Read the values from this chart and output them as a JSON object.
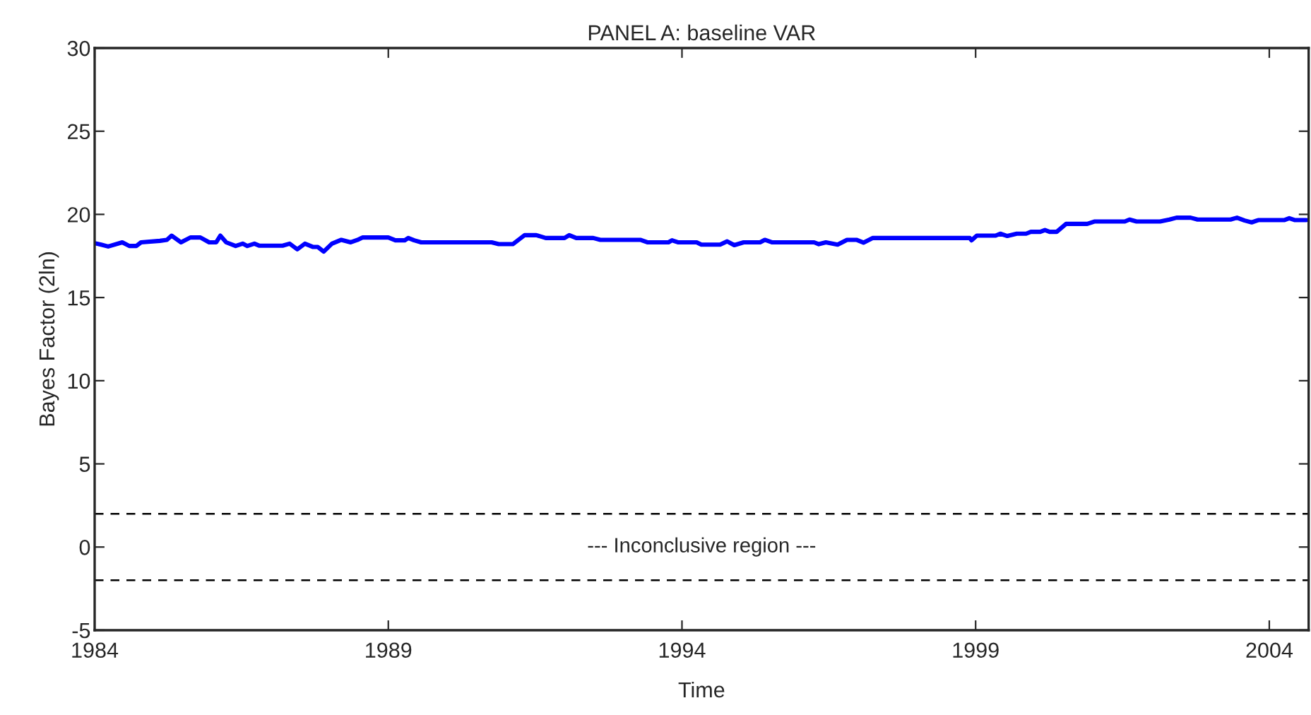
{
  "chart_data": {
    "type": "line",
    "title": "PANEL A: baseline VAR",
    "xlabel": "Time",
    "ylabel": "Bayes Factor (2ln)",
    "x": [
      1984.0,
      1984.11,
      1984.23,
      1984.47,
      1984.59,
      1984.71,
      1984.79,
      1985.11,
      1985.23,
      1985.31,
      1985.47,
      1985.63,
      1985.8,
      1985.95,
      1986.07,
      1986.14,
      1986.24,
      1986.4,
      1986.52,
      1986.6,
      1986.72,
      1986.8,
      1987.2,
      1987.32,
      1987.45,
      1987.58,
      1987.72,
      1987.8,
      1987.9,
      1988.04,
      1988.2,
      1988.36,
      1988.48,
      1988.56,
      1989.0,
      1989.12,
      1989.28,
      1989.34,
      1989.44,
      1989.56,
      1990.76,
      1990.88,
      1991.12,
      1991.32,
      1991.52,
      1991.68,
      1992.0,
      1992.08,
      1992.2,
      1992.49,
      1992.61,
      1993.29,
      1993.41,
      1993.77,
      1993.83,
      1993.93,
      1994.25,
      1994.33,
      1994.65,
      1994.77,
      1994.89,
      1995.05,
      1995.33,
      1995.41,
      1995.53,
      1996.25,
      1996.33,
      1996.45,
      1996.65,
      1996.81,
      1996.97,
      1997.09,
      1997.25,
      1998.9,
      1998.93,
      1999.02,
      1999.34,
      1999.42,
      1999.54,
      1999.7,
      1999.86,
      1999.94,
      2000.1,
      2000.18,
      2000.26,
      2000.38,
      2000.54,
      2000.9,
      2001.02,
      2001.54,
      2001.62,
      2001.74,
      2002.14,
      2002.3,
      2002.42,
      2002.66,
      2002.78,
      2003.34,
      2003.45,
      2003.58,
      2003.7,
      2003.82,
      2004.26,
      2004.34,
      2004.43,
      2004.63
    ],
    "series": [
      {
        "color": "#0000ff",
        "values": [
          18.27,
          18.18,
          18.07,
          18.32,
          18.1,
          18.1,
          18.32,
          18.41,
          18.47,
          18.72,
          18.32,
          18.61,
          18.61,
          18.32,
          18.32,
          18.72,
          18.32,
          18.1,
          18.24,
          18.1,
          18.24,
          18.12,
          18.12,
          18.24,
          17.9,
          18.24,
          18.04,
          18.04,
          17.76,
          18.24,
          18.47,
          18.32,
          18.47,
          18.61,
          18.61,
          18.44,
          18.44,
          18.58,
          18.44,
          18.32,
          18.32,
          18.21,
          18.21,
          18.75,
          18.75,
          18.58,
          18.58,
          18.75,
          18.58,
          18.58,
          18.47,
          18.47,
          18.32,
          18.32,
          18.44,
          18.32,
          18.32,
          18.18,
          18.18,
          18.38,
          18.15,
          18.32,
          18.32,
          18.47,
          18.32,
          18.32,
          18.21,
          18.32,
          18.18,
          18.47,
          18.47,
          18.3,
          18.58,
          18.58,
          18.44,
          18.72,
          18.72,
          18.84,
          18.7,
          18.84,
          18.84,
          18.95,
          18.95,
          19.06,
          18.95,
          18.95,
          19.43,
          19.43,
          19.57,
          19.57,
          19.69,
          19.57,
          19.57,
          19.69,
          19.8,
          19.8,
          19.69,
          19.69,
          19.8,
          19.63,
          19.52,
          19.66,
          19.66,
          19.77,
          19.66,
          19.66
        ]
      }
    ],
    "xlim": [
      1984,
      2004.67
    ],
    "xticks": [
      1984,
      1989,
      1994,
      1999,
      2004
    ],
    "ylim": [
      -5,
      30
    ],
    "yticks": [
      -5,
      0,
      5,
      10,
      15,
      20,
      25,
      30
    ],
    "ref_lines": [
      {
        "axis": "y",
        "value": 2,
        "color": "#000000",
        "line_style": "dashed"
      },
      {
        "axis": "y",
        "value": -2,
        "color": "#000000",
        "line_style": "dashed"
      }
    ],
    "annotations": [
      "--- Inconclusive region ---"
    ],
    "grid": false,
    "legend": false,
    "marker": "none",
    "line_style": "solid"
  }
}
